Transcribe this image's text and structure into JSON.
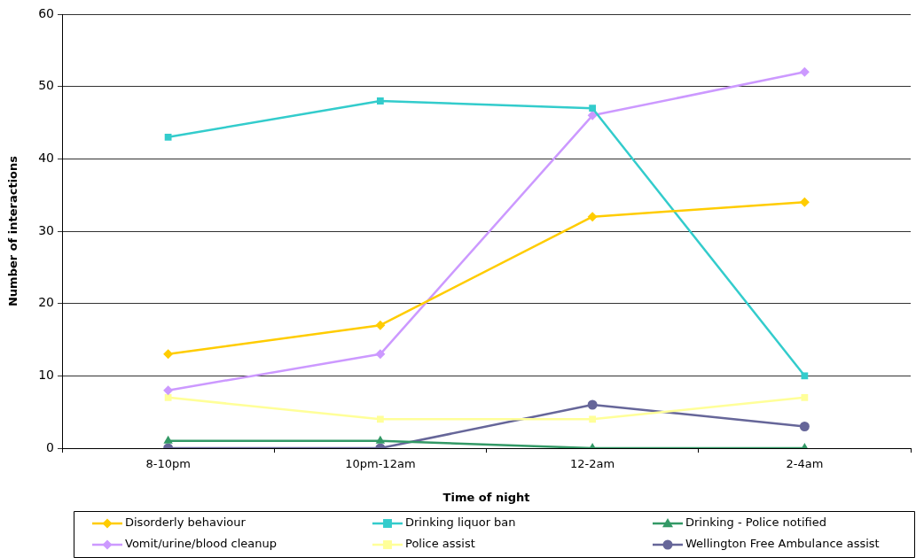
{
  "chart_data": {
    "type": "line",
    "xlabel": "Time of night",
    "ylabel": "Number of interactions",
    "categories": [
      "8-10pm",
      "10pm-12am",
      "12-2am",
      "2-4am"
    ],
    "ylim": [
      0,
      60
    ],
    "yticks": [
      0,
      10,
      20,
      30,
      40,
      50,
      60
    ],
    "grid": "y",
    "legend": "bottom",
    "series": [
      {
        "name": "Disorderly behaviour",
        "color": "#ffcc00",
        "marker": "diamond",
        "values": [
          13,
          17,
          32,
          34
        ]
      },
      {
        "name": "Drinking liquor ban",
        "color": "#33cccc",
        "marker": "square",
        "values": [
          43,
          48,
          47,
          10
        ]
      },
      {
        "name": "Drinking - Police notified",
        "color": "#339966",
        "marker": "triangle",
        "values": [
          1,
          1,
          0,
          0
        ]
      },
      {
        "name": "Vomit/urine/blood cleanup",
        "color": "#cc99ff",
        "marker": "diamond",
        "values": [
          8,
          13,
          46,
          52
        ]
      },
      {
        "name": "Police assist",
        "color": "#ffff99",
        "marker": "square",
        "values": [
          7,
          4,
          4,
          7
        ]
      },
      {
        "name": "Wellington Free Ambulance assist",
        "color": "#666699",
        "marker": "circle",
        "values": [
          0,
          0,
          6,
          3
        ]
      }
    ]
  }
}
